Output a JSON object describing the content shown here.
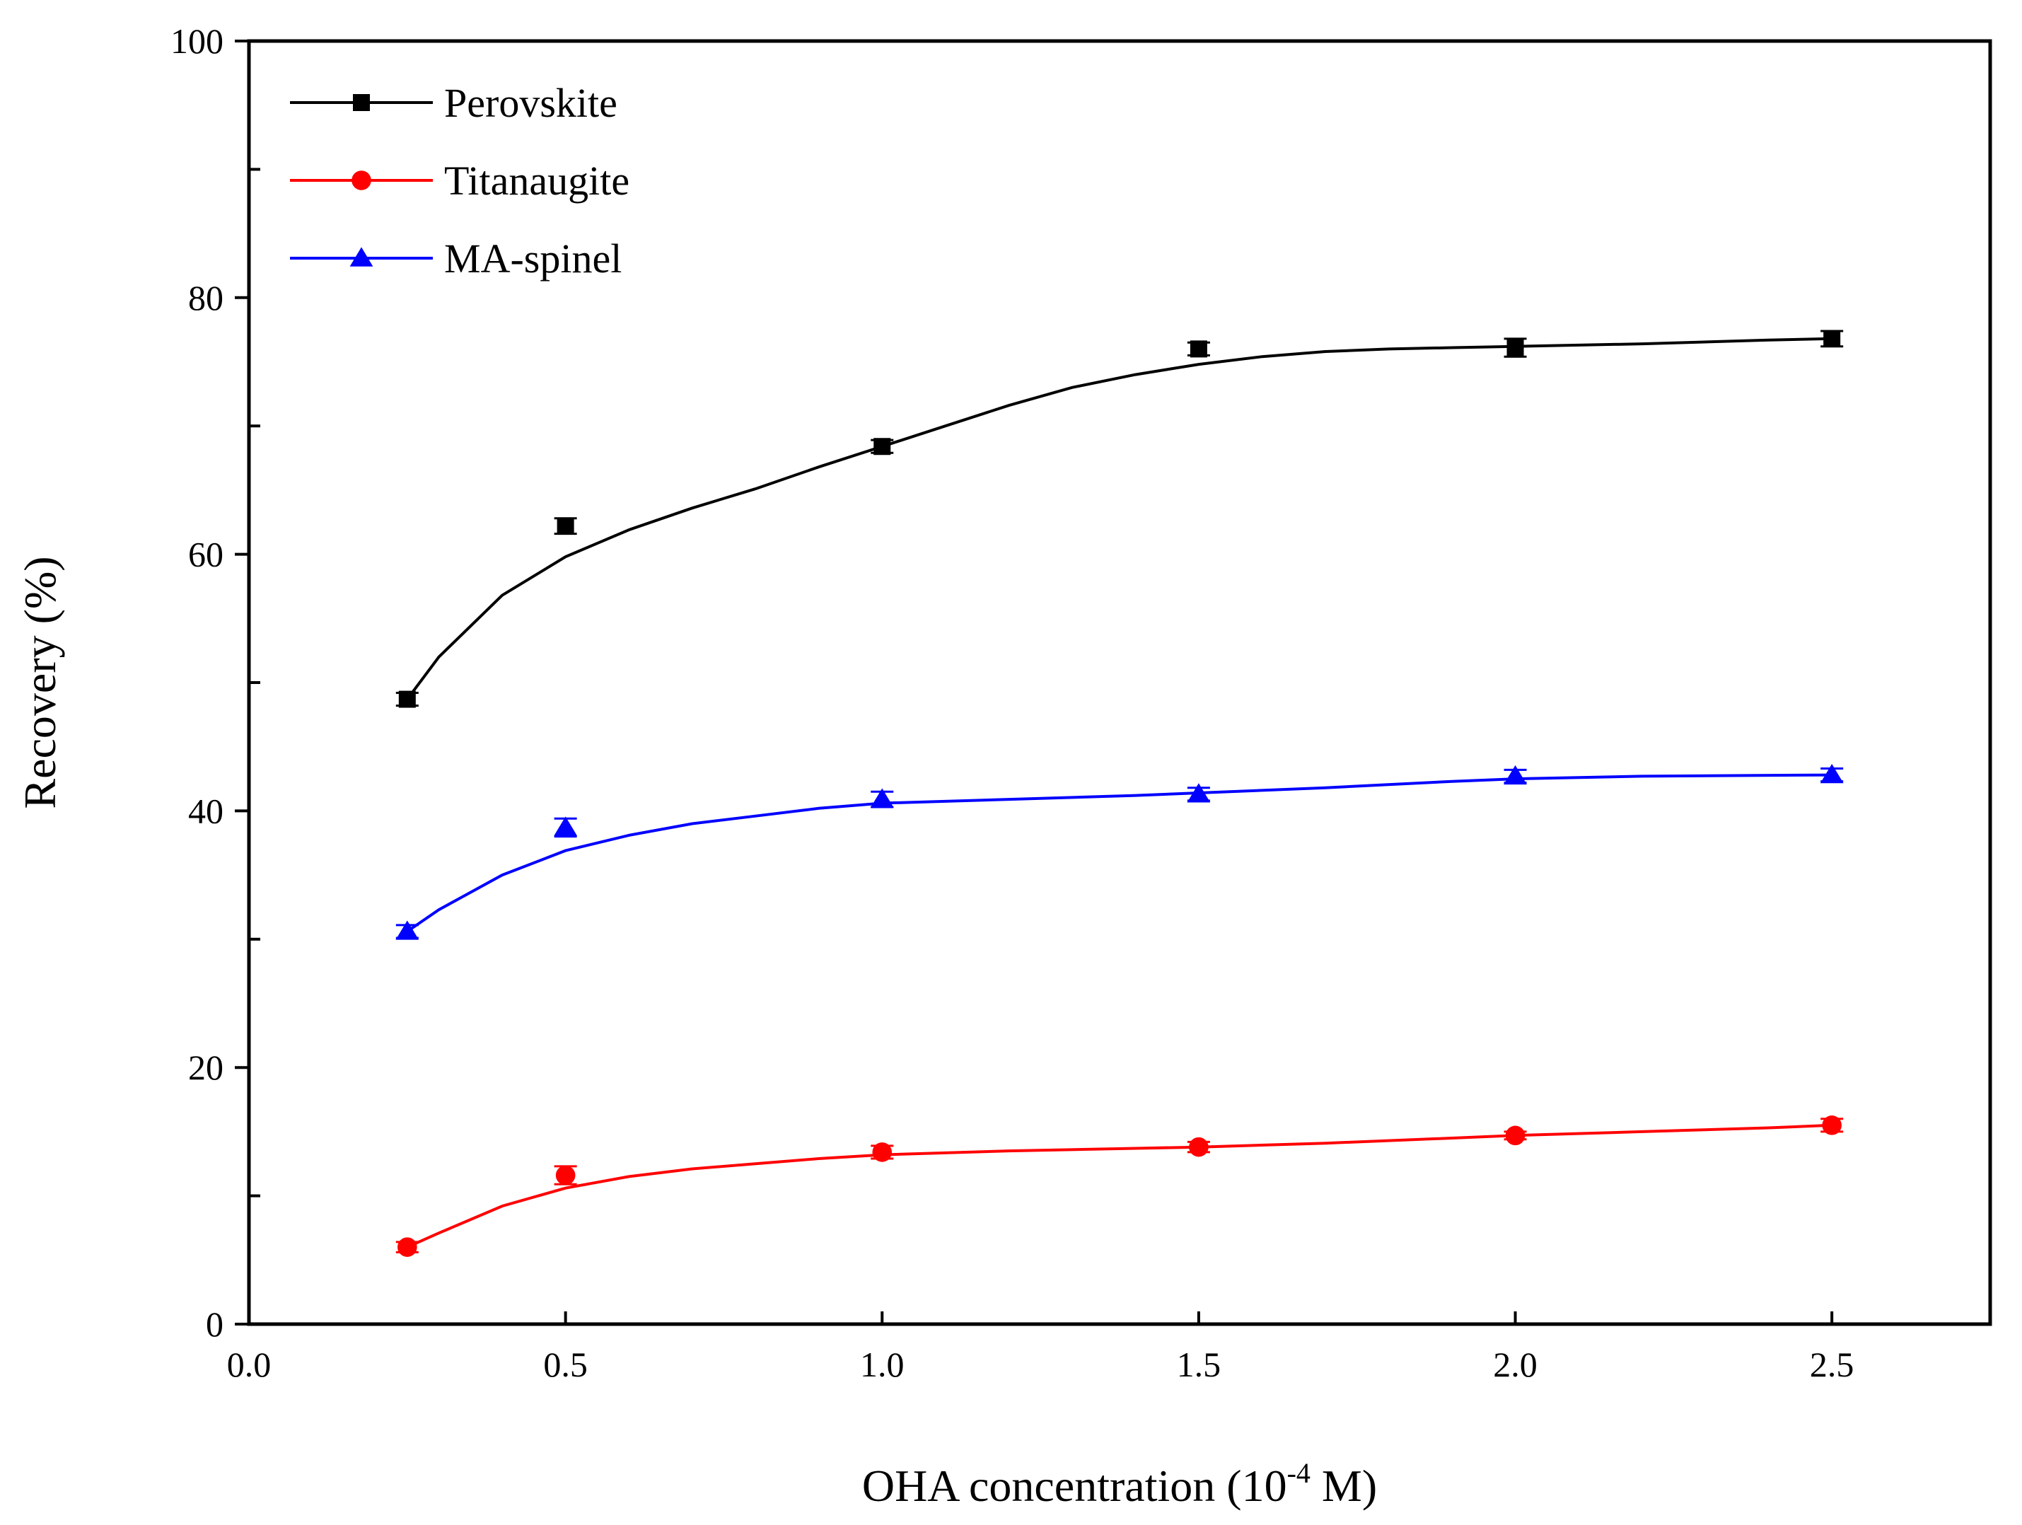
{
  "chart_data": {
    "type": "line",
    "title": "",
    "xlabel": {
      "prefix": "OHA concentration (10",
      "superscript": "-4",
      "suffix": " M)"
    },
    "ylabel": "Recovery (%)",
    "xlim": [
      0.0,
      2.75
    ],
    "ylim": [
      0,
      100
    ],
    "x_ticks": [
      0.0,
      0.5,
      1.0,
      1.5,
      2.0,
      2.5
    ],
    "x_tick_labels": [
      "0.0",
      "0.5",
      "1.0",
      "1.5",
      "2.0",
      "2.5"
    ],
    "y_ticks": [
      0,
      20,
      40,
      60,
      80,
      100
    ],
    "y_tick_labels": [
      "0",
      "20",
      "40",
      "60",
      "80",
      "100"
    ],
    "y_minor_ticks": [
      10,
      30,
      50,
      70,
      90
    ],
    "grid": false,
    "legend_position": "top-left",
    "x": [
      0.25,
      0.5,
      1.0,
      1.5,
      2.0,
      2.5
    ],
    "series": [
      {
        "name": "Perovskite",
        "color": "#000000",
        "marker": "square",
        "values": [
          48.7,
          62.2,
          68.4,
          76.0,
          76.1,
          76.8
        ],
        "errors": [
          0.5,
          0.6,
          0.5,
          0.5,
          0.7,
          0.6
        ],
        "fit_curve": [
          [
            0.25,
            48.7
          ],
          [
            0.3,
            52.0
          ],
          [
            0.4,
            56.8
          ],
          [
            0.5,
            59.8
          ],
          [
            0.6,
            61.9
          ],
          [
            0.7,
            63.6
          ],
          [
            0.8,
            65.1
          ],
          [
            0.9,
            66.8
          ],
          [
            1.0,
            68.4
          ],
          [
            1.1,
            70.0
          ],
          [
            1.2,
            71.6
          ],
          [
            1.3,
            73.0
          ],
          [
            1.4,
            74.0
          ],
          [
            1.5,
            74.8
          ],
          [
            1.6,
            75.4
          ],
          [
            1.7,
            75.8
          ],
          [
            1.8,
            76.0
          ],
          [
            1.9,
            76.1
          ],
          [
            2.0,
            76.2
          ],
          [
            2.2,
            76.4
          ],
          [
            2.4,
            76.7
          ],
          [
            2.5,
            76.8
          ]
        ]
      },
      {
        "name": "Titanaugite",
        "color": "#ff0000",
        "marker": "circle",
        "values": [
          6.0,
          11.6,
          13.4,
          13.8,
          14.7,
          15.5
        ],
        "errors": [
          0.4,
          0.7,
          0.5,
          0.4,
          0.3,
          0.5
        ],
        "fit_curve": [
          [
            0.25,
            6.0
          ],
          [
            0.3,
            7.1
          ],
          [
            0.4,
            9.2
          ],
          [
            0.5,
            10.6
          ],
          [
            0.6,
            11.5
          ],
          [
            0.7,
            12.1
          ],
          [
            0.8,
            12.5
          ],
          [
            0.9,
            12.9
          ],
          [
            1.0,
            13.2
          ],
          [
            1.2,
            13.5
          ],
          [
            1.4,
            13.7
          ],
          [
            1.5,
            13.8
          ],
          [
            1.7,
            14.1
          ],
          [
            1.9,
            14.5
          ],
          [
            2.0,
            14.7
          ],
          [
            2.2,
            15.0
          ],
          [
            2.4,
            15.3
          ],
          [
            2.5,
            15.5
          ]
        ]
      },
      {
        "name": "MA-spinel",
        "color": "#0000ff",
        "marker": "triangle",
        "values": [
          30.6,
          38.7,
          40.9,
          41.3,
          42.7,
          42.8
        ],
        "errors": [
          0.5,
          0.7,
          0.6,
          0.5,
          0.5,
          0.5
        ],
        "fit_curve": [
          [
            0.25,
            30.6
          ],
          [
            0.3,
            32.3
          ],
          [
            0.4,
            35.0
          ],
          [
            0.5,
            36.9
          ],
          [
            0.6,
            38.1
          ],
          [
            0.7,
            39.0
          ],
          [
            0.8,
            39.6
          ],
          [
            0.9,
            40.2
          ],
          [
            1.0,
            40.6
          ],
          [
            1.2,
            40.9
          ],
          [
            1.4,
            41.2
          ],
          [
            1.5,
            41.4
          ],
          [
            1.7,
            41.8
          ],
          [
            1.9,
            42.3
          ],
          [
            2.0,
            42.5
          ],
          [
            2.2,
            42.7
          ],
          [
            2.5,
            42.8
          ]
        ]
      }
    ]
  }
}
